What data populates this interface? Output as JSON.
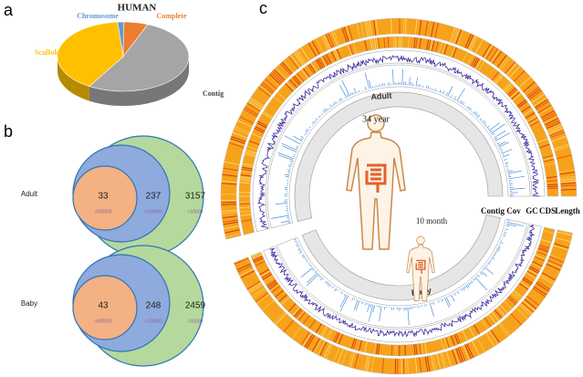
{
  "chart_data": [
    {
      "type": "pie",
      "panel": "a",
      "title": "HUMAN",
      "categories": [
        "Chromosome",
        "Complete",
        "Contig",
        "Scaffold"
      ],
      "values": [
        1.5,
        6,
        52.5,
        40
      ],
      "colors": [
        "#5b9bd5",
        "#ed7d31",
        "#a5a5a5",
        "#ffc000"
      ]
    },
    {
      "type": "venn",
      "panel": "b",
      "thresholds": [
        ">500000",
        ">100000",
        ">10000"
      ],
      "colors": [
        "#f4b183",
        "#8faadc",
        "#b5d99c"
      ],
      "groups": [
        {
          "name": "Adult",
          "values": [
            33,
            237,
            3157
          ]
        },
        {
          "name": "Baby",
          "values": [
            43,
            248,
            2459
          ]
        }
      ]
    },
    {
      "type": "circos",
      "panel": "c",
      "tracks": [
        "Contig",
        "Cov",
        "GC",
        "CDS",
        "Length"
      ],
      "samples": [
        "Adult",
        "Baby"
      ],
      "ages": [
        "34 year",
        "10 month"
      ]
    }
  ]
}
